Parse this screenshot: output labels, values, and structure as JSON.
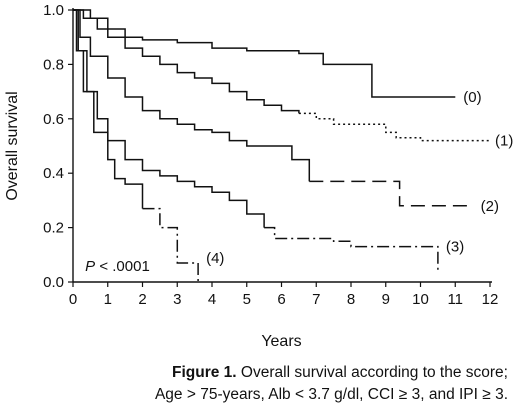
{
  "chart_data": {
    "type": "line",
    "subtype": "kaplan-meier step",
    "xlabel": "Years",
    "ylabel": "Overall survival",
    "xlim": [
      0,
      12
    ],
    "ylim": [
      0,
      1.0
    ],
    "xticks": [
      "0",
      "1",
      "2",
      "3",
      "4",
      "5",
      "6",
      "7",
      "8",
      "9",
      "10",
      "11",
      "12"
    ],
    "yticks": [
      "0.0",
      "0.2",
      "0.4",
      "0.6",
      "0.8",
      "1.0"
    ],
    "grid": false,
    "annotation": {
      "p_label": "P",
      "p_value": "< .0001"
    },
    "series": [
      {
        "name": "(0)",
        "style": "solid",
        "points": [
          [
            0,
            1.0
          ],
          [
            0.5,
            0.97
          ],
          [
            1,
            0.93
          ],
          [
            1.5,
            0.9
          ],
          [
            2,
            0.89
          ],
          [
            3,
            0.88
          ],
          [
            4,
            0.86
          ],
          [
            5,
            0.85
          ],
          [
            6,
            0.85
          ],
          [
            6.5,
            0.84
          ],
          [
            7.2,
            0.8
          ],
          [
            8.6,
            0.68
          ],
          [
            11,
            0.68
          ]
        ]
      },
      {
        "name": "(1)",
        "style": "dotted-tail",
        "points": [
          [
            0,
            1.0
          ],
          [
            0.3,
            0.97
          ],
          [
            0.7,
            0.93
          ],
          [
            1,
            0.9
          ],
          [
            1.5,
            0.86
          ],
          [
            2,
            0.83
          ],
          [
            2.5,
            0.8
          ],
          [
            3,
            0.77
          ],
          [
            3.5,
            0.75
          ],
          [
            4,
            0.73
          ],
          [
            4.5,
            0.7
          ],
          [
            5,
            0.67
          ],
          [
            5.5,
            0.65
          ],
          [
            6,
            0.63
          ],
          [
            6.5,
            0.62
          ],
          [
            7,
            0.6
          ],
          [
            7.5,
            0.58
          ],
          [
            9,
            0.55
          ],
          [
            9.3,
            0.53
          ],
          [
            10,
            0.52
          ],
          [
            12,
            0.52
          ]
        ]
      },
      {
        "name": "(2)",
        "style": "long-dash-tail",
        "points": [
          [
            0,
            1.0
          ],
          [
            0.2,
            0.9
          ],
          [
            0.5,
            0.83
          ],
          [
            1,
            0.75
          ],
          [
            1.5,
            0.68
          ],
          [
            2,
            0.63
          ],
          [
            2.5,
            0.6
          ],
          [
            3,
            0.58
          ],
          [
            3.5,
            0.56
          ],
          [
            4,
            0.55
          ],
          [
            4.5,
            0.52
          ],
          [
            5,
            0.5
          ],
          [
            6,
            0.5
          ],
          [
            6.3,
            0.45
          ],
          [
            6.8,
            0.37
          ],
          [
            9.4,
            0.28
          ],
          [
            11.5,
            0.28
          ]
        ]
      },
      {
        "name": "(3)",
        "style": "dash-dot-tail",
        "points": [
          [
            0,
            1.0
          ],
          [
            0.15,
            0.85
          ],
          [
            0.4,
            0.7
          ],
          [
            0.7,
            0.6
          ],
          [
            1,
            0.52
          ],
          [
            1.5,
            0.45
          ],
          [
            2,
            0.41
          ],
          [
            2.5,
            0.39
          ],
          [
            3,
            0.37
          ],
          [
            3.5,
            0.35
          ],
          [
            4,
            0.33
          ],
          [
            4.5,
            0.3
          ],
          [
            5,
            0.25
          ],
          [
            5.5,
            0.2
          ],
          [
            5.8,
            0.16
          ],
          [
            6.5,
            0.16
          ],
          [
            7.5,
            0.15
          ],
          [
            8,
            0.13
          ],
          [
            10.5,
            0.13
          ],
          [
            10.5,
            0.04
          ]
        ]
      },
      {
        "name": "(4)",
        "style": "dash-dot-tail",
        "points": [
          [
            0,
            1.0
          ],
          [
            0.1,
            0.85
          ],
          [
            0.3,
            0.7
          ],
          [
            0.6,
            0.55
          ],
          [
            1,
            0.45
          ],
          [
            1.2,
            0.38
          ],
          [
            1.5,
            0.36
          ],
          [
            2,
            0.27
          ],
          [
            2.5,
            0.2
          ],
          [
            3,
            0.15
          ],
          [
            3,
            0.07
          ],
          [
            3.2,
            0.07
          ],
          [
            3.6,
            0.07
          ],
          [
            3.6,
            0.0
          ]
        ]
      }
    ]
  },
  "caption": {
    "label": "Figure 1.",
    "line1": " Overall survival according to  the score;",
    "line2": "Age > 75-years, Alb < 3.7 g/dl, CCI ≥ 3, and IPI ≥ 3."
  }
}
